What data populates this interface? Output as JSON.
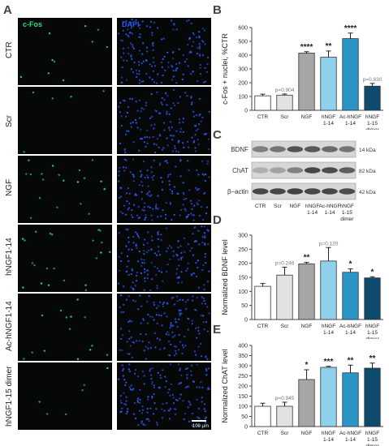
{
  "panels": {
    "A": "A",
    "B": "B",
    "C": "C",
    "D": "D",
    "E": "E"
  },
  "panel_a": {
    "channels": {
      "cfos": "c-Fos",
      "dapi": "DAPI"
    },
    "channel_colors": {
      "cfos": "#29e07a",
      "dapi": "#2a5bff"
    },
    "rows": [
      "CTR",
      "Scr",
      "NGF",
      "hNGF1-14",
      "Ac-hNGF1-14",
      "hNGF1-15 dimer"
    ],
    "scale_bar": "100 μm"
  },
  "panel_c": {
    "bands": [
      {
        "label": "BDNF",
        "kda": "14 kDa"
      },
      {
        "label": "ChAT",
        "kda": "82 kDa"
      },
      {
        "label": "β–actin",
        "kda": "42 kDa"
      }
    ],
    "lanes": [
      [
        "CTR"
      ],
      [
        "Scr"
      ],
      [
        "NGF"
      ],
      [
        "hNGF",
        "1-14"
      ],
      [
        "Ac-hNGF",
        "1-14"
      ],
      [
        "hNGF",
        "1-15",
        "dimer"
      ]
    ]
  },
  "chart_data": [
    {
      "panel": "B",
      "type": "bar",
      "categories": [
        [
          "CTR"
        ],
        [
          "Scr"
        ],
        [
          "NGF"
        ],
        [
          "hNGF",
          "1-14"
        ],
        [
          "Ac-hNGF",
          "1-14"
        ],
        [
          "hNGF",
          "1-15",
          "dimer"
        ]
      ],
      "values": [
        105,
        110,
        415,
        385,
        520,
        175
      ],
      "errors": [
        12,
        8,
        10,
        45,
        40,
        20
      ],
      "ylabel": "c-Fos + nuclei, %CTR",
      "ylim": [
        0,
        600
      ],
      "yticks": [
        0,
        100,
        200,
        300,
        400,
        500,
        600
      ],
      "annotations": [
        "",
        "p=0.904",
        "****",
        "**",
        "****",
        "p=0.830"
      ],
      "colors": [
        "#ffffff",
        "#e2e2e2",
        "#a8a6a5",
        "#8fd0ec",
        "#2b95c7",
        "#0e4a6e"
      ]
    },
    {
      "panel": "D",
      "type": "bar",
      "categories": [
        [
          "CTR"
        ],
        [
          "Scr"
        ],
        [
          "NGF"
        ],
        [
          "hNGF",
          "1-14"
        ],
        [
          "Ac-hNGF",
          "1-14"
        ],
        [
          "hNGF",
          "1-15",
          "dimer"
        ]
      ],
      "values": [
        118,
        158,
        198,
        208,
        168,
        148
      ],
      "errors": [
        10,
        28,
        5,
        48,
        12,
        4
      ],
      "ylabel": "Normalized BDNF level",
      "ylim": [
        0,
        300
      ],
      "yticks": [
        0,
        50,
        100,
        150,
        200,
        250,
        300
      ],
      "annotations": [
        "",
        "p=0.246",
        "**",
        "p=0.120",
        "*",
        "*"
      ],
      "colors": [
        "#ffffff",
        "#e2e2e2",
        "#a8a6a5",
        "#8fd0ec",
        "#2b95c7",
        "#0e4a6e"
      ]
    },
    {
      "panel": "E",
      "type": "bar",
      "categories": [
        [
          "CTR"
        ],
        [
          "Scr"
        ],
        [
          "NGF"
        ],
        [
          "hNGF",
          "1-14"
        ],
        [
          "Ac-hNGF",
          "1-14"
        ],
        [
          "hNGF",
          "1-15",
          "dimer"
        ]
      ],
      "values": [
        100,
        100,
        232,
        292,
        265,
        288
      ],
      "errors": [
        15,
        20,
        48,
        5,
        38,
        25
      ],
      "ylabel": "Normalized ChAT level",
      "ylim": [
        0,
        400
      ],
      "yticks": [
        0,
        50,
        100,
        150,
        200,
        250,
        300,
        350,
        400
      ],
      "annotations": [
        "",
        "p=0.945",
        "*",
        "***",
        "**",
        "**"
      ],
      "colors": [
        "#ffffff",
        "#e2e2e2",
        "#a8a6a5",
        "#8fd0ec",
        "#2b95c7",
        "#0e4a6e"
      ]
    }
  ]
}
